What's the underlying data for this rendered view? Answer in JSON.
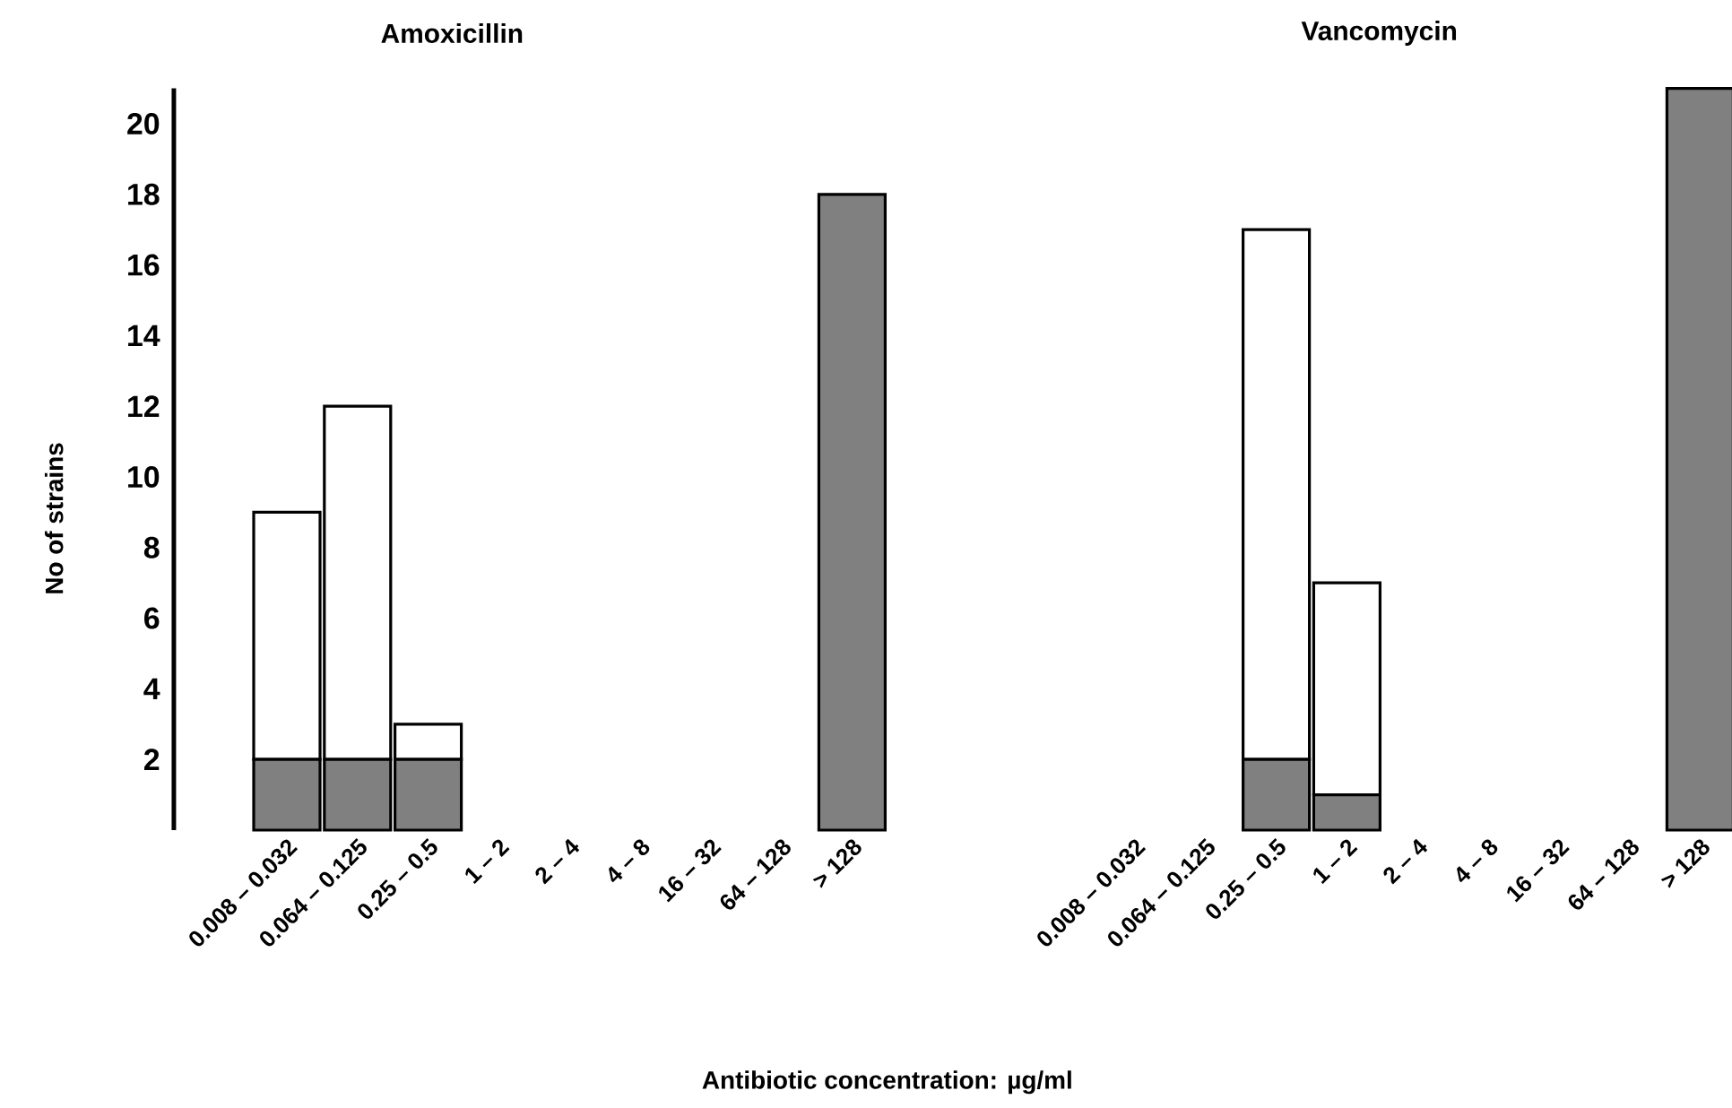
{
  "chart_data": [
    {
      "type": "bar",
      "title": "Amoxicillin",
      "ylabel": "No of strains",
      "xlabel": "Antibiotic concentration: µg/ml",
      "stacked": true,
      "categories": [
        "0.008 – 0.032",
        "0.064 – 0.125",
        "0.25 – 0.5",
        "1 – 2",
        "2 – 4",
        "4 – 8",
        "16 – 32",
        "64 – 128",
        "> 128"
      ],
      "series": [
        {
          "color": "#808080",
          "values": [
            2,
            2,
            2,
            0,
            0,
            0,
            0,
            0,
            18
          ]
        },
        {
          "color": "#ffffff",
          "values": [
            7,
            10,
            1,
            0,
            0,
            0,
            0,
            0,
            0
          ]
        }
      ],
      "ylim": [
        0,
        21
      ],
      "yticks": [
        2,
        4,
        6,
        8,
        10,
        12,
        14,
        16,
        18,
        20
      ]
    },
    {
      "type": "bar",
      "title": "Vancomycin",
      "stacked": true,
      "tick_labels": "x",
      "categories": [
        "0.008 – 0.032",
        "0.064 – 0.125",
        "0.25 – 0.5",
        "1 – 2",
        "2 – 4",
        "4 – 8",
        "16 – 32",
        "64 – 128",
        "> 128"
      ],
      "series": [
        {
          "color": "#808080",
          "values": [
            0,
            0,
            2,
            1,
            0,
            0,
            0,
            0,
            21
          ]
        },
        {
          "color": "#ffffff",
          "values": [
            0,
            0,
            15,
            6,
            0,
            0,
            0,
            0,
            0
          ]
        }
      ],
      "ylim": [
        0,
        21
      ]
    }
  ]
}
